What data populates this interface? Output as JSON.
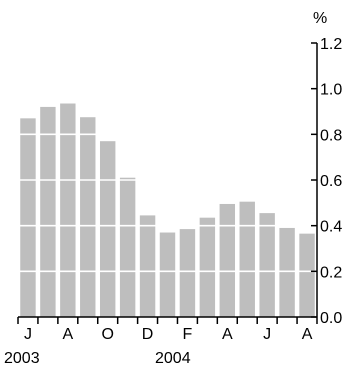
{
  "chart_data": {
    "type": "bar",
    "title": "",
    "xlabel": "",
    "ylabel": "%",
    "ylim": [
      0,
      1.2
    ],
    "yticks": [
      "0.0",
      "0.2",
      "0.4",
      "0.6",
      "0.8",
      "1.0",
      "1.2"
    ],
    "categories": [
      "Jun 2003",
      "Jul 2003",
      "Aug 2003",
      "Sep 2003",
      "Oct 2003",
      "Nov 2003",
      "Dec 2003",
      "Jan 2004",
      "Feb 2004",
      "Mar 2004",
      "Apr 2004",
      "May 2004",
      "Jun 2004",
      "Jul 2004",
      "Aug 2004"
    ],
    "x_tick_labels": [
      "J",
      "A",
      "O",
      "D",
      "F",
      "A",
      "J",
      "A"
    ],
    "x_year_labels": [
      "2003",
      "2004"
    ],
    "values": [
      0.87,
      0.92,
      0.935,
      0.875,
      0.77,
      0.61,
      0.445,
      0.37,
      0.385,
      0.435,
      0.495,
      0.505,
      0.455,
      0.39,
      0.365
    ],
    "bar_color": "#bebebe",
    "gridlines": true,
    "gridline_color": "#ffffff",
    "y_axis_position": "right",
    "legend": "none"
  }
}
